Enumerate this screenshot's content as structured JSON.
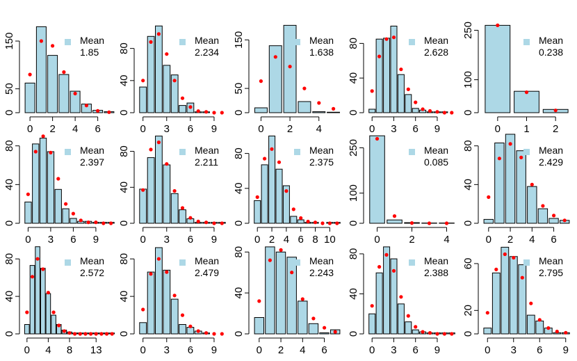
{
  "chart_data": [
    {
      "type": "bar",
      "categories": [
        0,
        1,
        2,
        3,
        4,
        5,
        6,
        7
      ],
      "values": [
        62,
        180,
        120,
        80,
        45,
        18,
        5,
        2
      ],
      "overlay_points": [
        80,
        150,
        140,
        85,
        40,
        15,
        4,
        1
      ],
      "xlim": [
        -0.5,
        7.5
      ],
      "ylim": [
        0,
        185
      ],
      "xticks": [
        0,
        2,
        4,
        6
      ],
      "yticks": [
        0,
        50,
        150
      ],
      "legend": {
        "title": "Mean",
        "value": "1.85"
      }
    },
    {
      "type": "bar",
      "categories": [
        0,
        1,
        2,
        3,
        4,
        5,
        6,
        7,
        8,
        9,
        10
      ],
      "values": [
        32,
        95,
        108,
        59,
        47,
        9,
        12,
        1,
        1,
        0,
        0
      ],
      "overlay_points": [
        40,
        88,
        98,
        73,
        40,
        18,
        7,
        2,
        1,
        0,
        0
      ],
      "xlim": [
        -0.5,
        10.5
      ],
      "ylim": [
        0,
        110
      ],
      "xticks": [
        0,
        3,
        6,
        9
      ],
      "yticks": [
        0,
        40,
        80
      ],
      "legend": {
        "title": "Mean",
        "value": "2.234"
      }
    },
    {
      "type": "bar",
      "categories": [
        0,
        1,
        2,
        3,
        4,
        5
      ],
      "values": [
        10,
        138,
        180,
        23,
        2,
        1
      ],
      "overlay_points": [
        65,
        115,
        95,
        50,
        20,
        8
      ],
      "xlim": [
        -0.5,
        5.5
      ],
      "ylim": [
        0,
        182
      ],
      "xticks": [
        0,
        2,
        4
      ],
      "yticks": [
        0,
        50,
        150
      ],
      "legend": {
        "title": "Mean",
        "value": "1.638"
      }
    },
    {
      "type": "bar",
      "categories": [
        0,
        1,
        2,
        3,
        4,
        5,
        6,
        7,
        8,
        9,
        10,
        11
      ],
      "values": [
        4,
        85,
        86,
        100,
        44,
        21,
        5,
        3,
        1,
        1,
        1,
        0
      ],
      "overlay_points": [
        25,
        65,
        85,
        87,
        50,
        27,
        12,
        4,
        2,
        1,
        0,
        0
      ],
      "xlim": [
        -0.5,
        11.5
      ],
      "ylim": [
        0,
        102
      ],
      "xticks": [
        0,
        3,
        6,
        9
      ],
      "yticks": [
        0,
        40,
        80
      ],
      "legend": {
        "title": "Mean",
        "value": "2.628"
      }
    },
    {
      "type": "bar",
      "categories": [
        0,
        1,
        2
      ],
      "values": [
        265,
        65,
        10
      ],
      "overlay_points": [
        265,
        62,
        7
      ],
      "xlim": [
        -0.5,
        2.5
      ],
      "ylim": [
        0,
        268
      ],
      "xticks": [
        0,
        1,
        2
      ],
      "yticks": [
        0,
        100,
        250
      ],
      "legend": {
        "title": "Mean",
        "value": "0.238"
      }
    },
    {
      "type": "bar",
      "categories": [
        0,
        1,
        2,
        3,
        4,
        5,
        6,
        7,
        8,
        9,
        10,
        11
      ],
      "values": [
        22,
        82,
        88,
        74,
        35,
        15,
        5,
        2,
        2,
        1,
        1,
        1
      ],
      "overlay_points": [
        30,
        74,
        90,
        73,
        46,
        20,
        10,
        3,
        1,
        1,
        0,
        0
      ],
      "xlim": [
        -0.5,
        11.5
      ],
      "ylim": [
        0,
        92
      ],
      "xticks": [
        0,
        3,
        6,
        9
      ],
      "yticks": [
        0,
        40,
        80
      ],
      "legend": {
        "title": "Mean",
        "value": "2.397"
      }
    },
    {
      "type": "bar",
      "categories": [
        0,
        1,
        2,
        3,
        4,
        5,
        6,
        7,
        8,
        9,
        10
      ],
      "values": [
        38,
        73,
        97,
        65,
        33,
        15,
        5,
        1,
        1,
        1,
        1
      ],
      "overlay_points": [
        37,
        82,
        90,
        66,
        36,
        17,
        6,
        2,
        1,
        0,
        0
      ],
      "xlim": [
        -0.5,
        10.5
      ],
      "ylim": [
        0,
        99
      ],
      "xticks": [
        0,
        3,
        6,
        9
      ],
      "yticks": [
        0,
        40,
        80
      ],
      "legend": {
        "title": "Mean",
        "value": "2.211"
      }
    },
    {
      "type": "bar",
      "categories": [
        0,
        1,
        2,
        3,
        4,
        5,
        6,
        7,
        8,
        9,
        10,
        11
      ],
      "values": [
        26,
        67,
        100,
        62,
        43,
        8,
        4,
        1,
        1,
        0,
        1,
        1
      ],
      "overlay_points": [
        30,
        74,
        85,
        70,
        37,
        16,
        6,
        2,
        1,
        0,
        0,
        0
      ],
      "xlim": [
        -0.5,
        11.5
      ],
      "ylim": [
        0,
        102
      ],
      "xticks": [
        0,
        2,
        4,
        6,
        8,
        10
      ],
      "yticks": [
        0,
        40,
        80
      ],
      "legend": {
        "title": "Mean",
        "value": "2.375"
      }
    },
    {
      "type": "bar",
      "categories": [
        0,
        1,
        2,
        3,
        4
      ],
      "values": [
        290,
        11,
        2,
        1,
        1
      ],
      "overlay_points": [
        280,
        24,
        1,
        0,
        0
      ],
      "xlim": [
        -0.5,
        4.5
      ],
      "ylim": [
        0,
        295
      ],
      "xticks": [
        0,
        2,
        4
      ],
      "yticks": [
        0,
        100,
        250
      ],
      "legend": {
        "title": "Mean",
        "value": "0.085"
      }
    },
    {
      "type": "bar",
      "categories": [
        0,
        1,
        2,
        3,
        4,
        5,
        6,
        7
      ],
      "values": [
        4,
        83,
        92,
        75,
        38,
        15,
        5,
        3
      ],
      "overlay_points": [
        27,
        67,
        82,
        68,
        40,
        18,
        8,
        3
      ],
      "xlim": [
        -0.5,
        7.5
      ],
      "ylim": [
        0,
        92
      ],
      "xticks": [
        0,
        2,
        4,
        6
      ],
      "yticks": [
        0,
        40,
        80
      ],
      "legend": {
        "title": "Mean",
        "value": "2.429"
      }
    },
    {
      "type": "bar",
      "categories": [
        0,
        1,
        2,
        3,
        4,
        5,
        6,
        7,
        8,
        9,
        10,
        11,
        12,
        13,
        14,
        15,
        16
      ],
      "values": [
        10,
        73,
        93,
        70,
        43,
        20,
        10,
        4,
        2,
        1,
        1,
        1,
        1,
        1,
        1,
        1,
        1
      ],
      "overlay_points": [
        23,
        61,
        80,
        69,
        44,
        23,
        9,
        3,
        1,
        0,
        0,
        0,
        0,
        0,
        0,
        0,
        0
      ],
      "xlim": [
        -0.5,
        16.5
      ],
      "ylim": [
        0,
        95
      ],
      "xticks": [
        0,
        4,
        8,
        13
      ],
      "yticks": [
        0,
        40,
        80
      ],
      "legend": {
        "title": "Mean",
        "value": "2.572"
      }
    },
    {
      "type": "bar",
      "categories": [
        0,
        1,
        2,
        3,
        4,
        5,
        6,
        7,
        8,
        9,
        10
      ],
      "values": [
        12,
        66,
        92,
        68,
        37,
        10,
        7,
        3,
        1,
        0,
        0
      ],
      "overlay_points": [
        26,
        64,
        80,
        66,
        41,
        20,
        8,
        3,
        1,
        0,
        0
      ],
      "xlim": [
        -0.5,
        10.5
      ],
      "ylim": [
        0,
        95
      ],
      "xticks": [
        0,
        3,
        6,
        9
      ],
      "yticks": [
        0,
        40,
        80
      ],
      "legend": {
        "title": "Mean",
        "value": "2.479"
      }
    },
    {
      "type": "bar",
      "categories": [
        0,
        1,
        2,
        3,
        4,
        5,
        6,
        7
      ],
      "values": [
        16,
        85,
        80,
        75,
        32,
        10,
        1,
        4
      ],
      "overlay_points": [
        32,
        72,
        82,
        60,
        34,
        15,
        6,
        2
      ],
      "xlim": [
        -0.5,
        7.5
      ],
      "ylim": [
        0,
        87
      ],
      "xticks": [
        0,
        2,
        4,
        6
      ],
      "yticks": [
        0,
        40,
        80
      ],
      "legend": {
        "title": "Mean",
        "value": "2.243"
      }
    },
    {
      "type": "bar",
      "categories": [
        0,
        1,
        2,
        3,
        4,
        5,
        6,
        7,
        8,
        9,
        10,
        11
      ],
      "values": [
        20,
        61,
        87,
        75,
        30,
        12,
        4,
        2,
        1,
        1,
        1,
        1
      ],
      "overlay_points": [
        28,
        67,
        79,
        63,
        37,
        18,
        7,
        2,
        1,
        0,
        0,
        0
      ],
      "xlim": [
        -0.5,
        11.5
      ],
      "ylim": [
        0,
        89
      ],
      "xticks": [
        0,
        3,
        6,
        9
      ],
      "yticks": [
        0,
        40,
        80
      ],
      "legend": {
        "title": "Mean",
        "value": "2.388"
      }
    },
    {
      "type": "bar",
      "categories": [
        0,
        1,
        2,
        3,
        4,
        5,
        6,
        7,
        8,
        9
      ],
      "values": [
        5,
        52,
        74,
        66,
        59,
        16,
        11,
        5,
        1,
        1
      ],
      "overlay_points": [
        18,
        55,
        68,
        65,
        48,
        26,
        12,
        5,
        2,
        1
      ],
      "xlim": [
        -0.5,
        9.5
      ],
      "ylim": [
        0,
        76
      ],
      "xticks": [
        0,
        3,
        6,
        9
      ],
      "yticks": [
        0,
        20,
        60
      ],
      "legend": {
        "title": "Mean",
        "value": "2.795"
      }
    }
  ],
  "colors": {
    "bar_fill": "#add8e6",
    "point": "#ff0000",
    "legend_swatch": "#add8e6"
  }
}
